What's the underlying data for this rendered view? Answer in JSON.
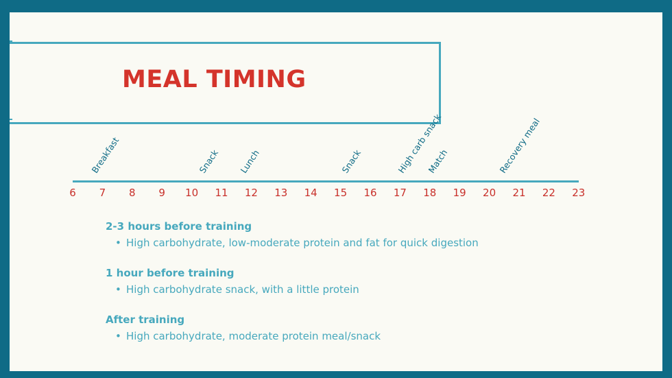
{
  "title": "MEAL TIMING",
  "timeline": {
    "hours": [
      "6",
      "7",
      "8",
      "9",
      "10",
      "11",
      "12",
      "13",
      "14",
      "15",
      "16",
      "17",
      "18",
      "19",
      "20",
      "21",
      "22",
      "23"
    ],
    "events": [
      {
        "label": "Breakfast",
        "hour": 7
      },
      {
        "label": "Snack",
        "hour": 10.6
      },
      {
        "label": "Lunch",
        "hour": 12
      },
      {
        "label": "Snack",
        "hour": 15.4
      },
      {
        "label": "High carb snack",
        "hour": 17.3
      },
      {
        "label": "Match",
        "hour": 18.3
      },
      {
        "label": "Recovery meal",
        "hour": 20.7
      }
    ]
  },
  "notes": [
    {
      "heading": "2-3 hours before training",
      "bullet": "High carbohydrate, low-moderate protein and fat for quick digestion"
    },
    {
      "heading": "1 hour before training",
      "bullet": "High carbohydrate snack, with a little protein"
    },
    {
      "heading": "After training",
      "bullet": "High carbohydrate, moderate protein meal/snack"
    }
  ],
  "colors": {
    "frame": "#0f6b86",
    "accent": "#46a8bd",
    "title": "#d4342b",
    "hours": "#c8302a"
  }
}
